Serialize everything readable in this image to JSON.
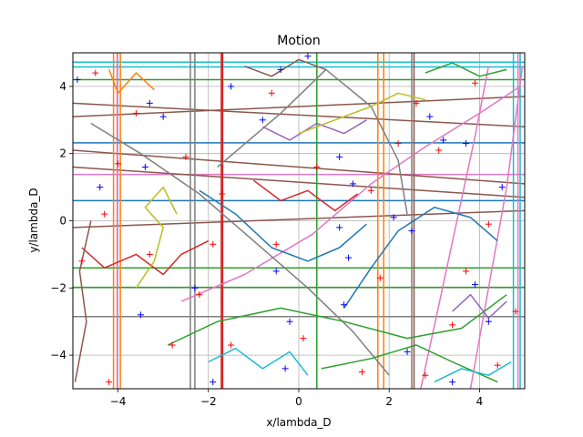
{
  "chart_data": {
    "type": "line",
    "title": "Motion",
    "xlabel": "x/lambda_D",
    "ylabel": "y/lambda_D",
    "xlim": [
      -5,
      5
    ],
    "ylim": [
      -5,
      5
    ],
    "xticks": [
      -4,
      -2,
      0,
      2,
      4
    ],
    "yticks": [
      -4,
      -2,
      0,
      2,
      4
    ],
    "xtick_labels": [
      "−4",
      "−2",
      "0",
      "2",
      "4"
    ],
    "ytick_labels": [
      "−4",
      "−2",
      "0",
      "2",
      "4"
    ],
    "grid": true,
    "colors": [
      "#1f77b4",
      "#ff7f0e",
      "#2ca02c",
      "#d62728",
      "#9467bd",
      "#8c564b",
      "#e377c2",
      "#7f7f7f",
      "#bcbd22",
      "#17becf"
    ],
    "series": [
      {
        "color": "#1f77b4",
        "points": [
          [
            -5,
            2.32
          ],
          [
            5,
            2.32
          ]
        ]
      },
      {
        "color": "#1f77b4",
        "points": [
          [
            -5,
            0.6
          ],
          [
            5,
            0.6
          ]
        ]
      },
      {
        "color": "#17becf",
        "points": [
          [
            -5,
            4.72
          ],
          [
            5,
            4.72
          ]
        ]
      },
      {
        "color": "#17becf",
        "points": [
          [
            -5,
            4.58
          ],
          [
            5,
            4.58
          ]
        ]
      },
      {
        "color": "#2ca02c",
        "points": [
          [
            -5,
            4.2
          ],
          [
            5,
            4.2
          ]
        ]
      },
      {
        "color": "#2ca02c",
        "points": [
          [
            -5,
            -1.4
          ],
          [
            5,
            -1.4
          ]
        ]
      },
      {
        "color": "#2ca02c",
        "points": [
          [
            -5,
            -1.98
          ],
          [
            5,
            -1.98
          ]
        ]
      },
      {
        "color": "#7f7f7f",
        "points": [
          [
            -5,
            -2.85
          ],
          [
            5,
            -2.85
          ]
        ]
      },
      {
        "color": "#e377c2",
        "points": [
          [
            -5,
            1.38
          ],
          [
            5,
            1.38
          ]
        ]
      },
      {
        "color": "#8c564b",
        "points": [
          [
            -5,
            3.5
          ],
          [
            5,
            2.8
          ]
        ]
      },
      {
        "color": "#8c564b",
        "points": [
          [
            -5,
            3.1
          ],
          [
            5,
            3.7
          ]
        ]
      },
      {
        "color": "#8c564b",
        "points": [
          [
            -5,
            1.6
          ],
          [
            5,
            0.7
          ]
        ]
      },
      {
        "color": "#8c564b",
        "points": [
          [
            -5,
            -0.2
          ],
          [
            5,
            0.3
          ]
        ]
      },
      {
        "color": "#8c564b",
        "points": [
          [
            -5,
            2.1
          ],
          [
            5,
            1.1
          ]
        ]
      },
      {
        "color": "#ff7f0e",
        "points": [
          [
            -4.1,
            -5
          ],
          [
            -4.1,
            5
          ]
        ]
      },
      {
        "color": "#ff7f0e",
        "points": [
          [
            -3.95,
            -5
          ],
          [
            -3.95,
            5
          ]
        ]
      },
      {
        "color": "#ff7f0e",
        "points": [
          [
            1.75,
            -5
          ],
          [
            1.75,
            5
          ]
        ]
      },
      {
        "color": "#ff7f0e",
        "points": [
          [
            1.88,
            -5
          ],
          [
            1.88,
            5
          ]
        ]
      },
      {
        "color": "#e377c2",
        "points": [
          [
            -4.02,
            -5
          ],
          [
            -4.02,
            5
          ]
        ]
      },
      {
        "color": "#7f7f7f",
        "points": [
          [
            -2.4,
            -5
          ],
          [
            -2.4,
            5
          ]
        ]
      },
      {
        "color": "#7f7f7f",
        "points": [
          [
            -2.3,
            -5
          ],
          [
            -2.3,
            5
          ]
        ]
      },
      {
        "color": "#d62728",
        "points": [
          [
            -1.7,
            -5
          ],
          [
            -1.7,
            5
          ]
        ]
      },
      {
        "color": "#2ca02c",
        "points": [
          [
            0.4,
            -5
          ],
          [
            0.4,
            5
          ]
        ]
      },
      {
        "color": "#7f7f7f",
        "points": [
          [
            2.5,
            -5
          ],
          [
            2.5,
            5
          ]
        ]
      },
      {
        "color": "#8c564b",
        "points": [
          [
            2.55,
            -5
          ],
          [
            2.55,
            5
          ]
        ]
      },
      {
        "color": "#17becf",
        "points": [
          [
            4.75,
            -5
          ],
          [
            4.75,
            5
          ]
        ]
      },
      {
        "color": "#17becf",
        "points": [
          [
            4.9,
            -5
          ],
          [
            4.9,
            5
          ]
        ]
      },
      {
        "color": "#e377c2",
        "points": [
          [
            4.85,
            -5
          ],
          [
            4.85,
            5
          ]
        ]
      },
      {
        "color": "#e377c2",
        "points": [
          [
            -2.6,
            -2.4
          ],
          [
            -1.2,
            -1.6
          ],
          [
            0.3,
            -0.4
          ],
          [
            1.6,
            1.1
          ],
          [
            2.8,
            2.2
          ],
          [
            4.0,
            3.2
          ],
          [
            4.9,
            4.0
          ]
        ]
      },
      {
        "color": "#e377c2",
        "points": [
          [
            3.8,
            -5
          ],
          [
            4.2,
            -2
          ],
          [
            4.6,
            1
          ],
          [
            4.95,
            4.6
          ]
        ]
      },
      {
        "color": "#e377c2",
        "points": [
          [
            2.7,
            -5
          ],
          [
            3.1,
            -2.5
          ],
          [
            3.5,
            0
          ],
          [
            3.9,
            2.5
          ],
          [
            4.2,
            4.6
          ]
        ]
      },
      {
        "color": "#7f7f7f",
        "points": [
          [
            -1.8,
            1.6
          ],
          [
            -0.4,
            3.2
          ],
          [
            0.6,
            4.5
          ],
          [
            1.6,
            3.4
          ],
          [
            2.2,
            1.8
          ],
          [
            2.4,
            0.2
          ]
        ]
      },
      {
        "color": "#7f7f7f",
        "points": [
          [
            -4.6,
            2.9
          ],
          [
            -3.5,
            2.0
          ],
          [
            -2.2,
            0.8
          ],
          [
            -1.0,
            -0.6
          ],
          [
            0.2,
            -2.0
          ],
          [
            1.2,
            -3.3
          ],
          [
            2.0,
            -4.6
          ]
        ]
      },
      {
        "color": "#1f77b4",
        "points": [
          [
            -2.2,
            0.9
          ],
          [
            -1.4,
            0.2
          ],
          [
            -0.6,
            -0.8
          ],
          [
            0.2,
            -1.2
          ],
          [
            0.9,
            -0.8
          ],
          [
            1.5,
            -0.1
          ]
        ]
      },
      {
        "color": "#1f77b4",
        "points": [
          [
            1.0,
            -2.6
          ],
          [
            1.6,
            -1.4
          ],
          [
            2.2,
            -0.3
          ],
          [
            3.0,
            0.4
          ],
          [
            3.8,
            0.1
          ],
          [
            4.4,
            -0.6
          ]
        ]
      },
      {
        "color": "#2ca02c",
        "points": [
          [
            -2.9,
            -3.7
          ],
          [
            -1.8,
            -3.0
          ],
          [
            -0.4,
            -2.6
          ],
          [
            1.0,
            -3.0
          ],
          [
            2.4,
            -3.5
          ],
          [
            3.6,
            -3.2
          ],
          [
            4.6,
            -2.2
          ]
        ]
      },
      {
        "color": "#2ca02c",
        "points": [
          [
            0.5,
            -4.4
          ],
          [
            1.6,
            -4.1
          ],
          [
            2.6,
            -3.7
          ],
          [
            3.4,
            -4.2
          ],
          [
            4.4,
            -4.8
          ]
        ]
      },
      {
        "color": "#d62728",
        "points": [
          [
            -4.8,
            -0.8
          ],
          [
            -4.3,
            -1.4
          ],
          [
            -3.6,
            -1.0
          ],
          [
            -3.0,
            -1.6
          ],
          [
            -2.6,
            -1.0
          ],
          [
            -2.0,
            -0.6
          ]
        ]
      },
      {
        "color": "#d62728",
        "points": [
          [
            -1.0,
            1.2
          ],
          [
            -0.4,
            0.6
          ],
          [
            0.2,
            0.9
          ],
          [
            0.8,
            0.3
          ],
          [
            1.3,
            0.8
          ]
        ]
      },
      {
        "color": "#9467bd",
        "points": [
          [
            -0.8,
            2.8
          ],
          [
            -0.2,
            2.4
          ],
          [
            0.4,
            2.9
          ],
          [
            1.0,
            2.6
          ],
          [
            1.5,
            3.0
          ]
        ]
      },
      {
        "color": "#9467bd",
        "points": [
          [
            3.4,
            -2.7
          ],
          [
            3.8,
            -2.2
          ],
          [
            4.2,
            -2.9
          ],
          [
            4.6,
            -2.4
          ]
        ]
      },
      {
        "color": "#bcbd22",
        "points": [
          [
            -3.6,
            -2.0
          ],
          [
            -3.2,
            -1.2
          ],
          [
            -3.0,
            -0.2
          ],
          [
            -3.4,
            0.4
          ],
          [
            -3.0,
            1.0
          ],
          [
            -2.7,
            0.2
          ]
        ]
      },
      {
        "color": "#bcbd22",
        "points": [
          [
            0.0,
            2.6
          ],
          [
            0.8,
            3.0
          ],
          [
            1.6,
            3.4
          ],
          [
            2.2,
            3.8
          ],
          [
            2.8,
            3.6
          ]
        ]
      },
      {
        "color": "#17becf",
        "points": [
          [
            -2.0,
            -4.2
          ],
          [
            -1.4,
            -3.8
          ],
          [
            -0.8,
            -4.4
          ],
          [
            -0.2,
            -3.9
          ],
          [
            0.2,
            -4.6
          ]
        ]
      },
      {
        "color": "#17becf",
        "points": [
          [
            3.0,
            -4.8
          ],
          [
            3.6,
            -4.4
          ],
          [
            4.2,
            -4.6
          ],
          [
            4.7,
            -4.2
          ]
        ]
      },
      {
        "color": "#ff7f0e",
        "points": [
          [
            -4.2,
            4.5
          ],
          [
            -4.0,
            3.8
          ],
          [
            -3.6,
            4.4
          ],
          [
            -3.2,
            3.9
          ]
        ]
      },
      {
        "color": "#2ca02c",
        "points": [
          [
            2.8,
            4.4
          ],
          [
            3.4,
            4.7
          ],
          [
            4.0,
            4.3
          ],
          [
            4.6,
            4.5
          ]
        ]
      },
      {
        "color": "#8c564b",
        "points": [
          [
            -4.95,
            -4.8
          ],
          [
            -4.7,
            -3.0
          ],
          [
            -4.85,
            -1.5
          ],
          [
            -4.6,
            0.0
          ]
        ]
      },
      {
        "color": "#8c564b",
        "points": [
          [
            -1.2,
            4.6
          ],
          [
            -0.6,
            4.3
          ],
          [
            0.0,
            4.8
          ],
          [
            0.6,
            4.5
          ]
        ]
      }
    ],
    "markers_red": [
      [
        -4.5,
        4.4
      ],
      [
        -3.6,
        3.2
      ],
      [
        -4.0,
        1.7
      ],
      [
        -4.3,
        0.2
      ],
      [
        -4.8,
        -1.2
      ],
      [
        -3.3,
        -1.0
      ],
      [
        -1.9,
        -0.7
      ],
      [
        -0.6,
        3.8
      ],
      [
        -1.7,
        0.8
      ],
      [
        0.4,
        1.6
      ],
      [
        -0.5,
        -0.7
      ],
      [
        1.6,
        0.9
      ],
      [
        2.6,
        3.5
      ],
      [
        3.1,
        2.1
      ],
      [
        3.9,
        4.1
      ],
      [
        4.2,
        -0.1
      ],
      [
        3.7,
        -1.5
      ],
      [
        3.4,
        -3.1
      ],
      [
        2.8,
        -4.6
      ],
      [
        1.4,
        -4.5
      ],
      [
        0.1,
        -3.5
      ],
      [
        -1.5,
        -3.7
      ],
      [
        -2.8,
        -3.7
      ],
      [
        -4.2,
        -4.8
      ],
      [
        -2.5,
        1.9
      ],
      [
        -2.2,
        -2.2
      ],
      [
        1.8,
        -1.7
      ],
      [
        2.2,
        2.3
      ],
      [
        4.8,
        -2.7
      ],
      [
        4.4,
        -4.3
      ]
    ],
    "markers_blue": [
      [
        -4.9,
        4.2
      ],
      [
        -3.3,
        3.5
      ],
      [
        -3.4,
        1.6
      ],
      [
        -4.4,
        1.0
      ],
      [
        -2.3,
        -2.0
      ],
      [
        -3.5,
        -2.8
      ],
      [
        -1.5,
        4.0
      ],
      [
        -0.4,
        4.5
      ],
      [
        0.2,
        4.9
      ],
      [
        -0.8,
        3.0
      ],
      [
        0.9,
        1.9
      ],
      [
        1.2,
        1.1
      ],
      [
        2.1,
        0.1
      ],
      [
        2.5,
        -0.3
      ],
      [
        2.9,
        3.1
      ],
      [
        3.2,
        2.4
      ],
      [
        3.7,
        2.3
      ],
      [
        4.5,
        1.0
      ],
      [
        3.9,
        -1.9
      ],
      [
        4.2,
        -3.0
      ],
      [
        3.4,
        -4.8
      ],
      [
        2.4,
        -3.9
      ],
      [
        1.0,
        -2.5
      ],
      [
        1.1,
        -1.1
      ],
      [
        -0.2,
        -3.0
      ],
      [
        -0.3,
        -4.4
      ],
      [
        -1.9,
        -4.8
      ],
      [
        -3.0,
        3.1
      ],
      [
        -0.5,
        -1.5
      ],
      [
        0.9,
        -0.2
      ]
    ]
  }
}
